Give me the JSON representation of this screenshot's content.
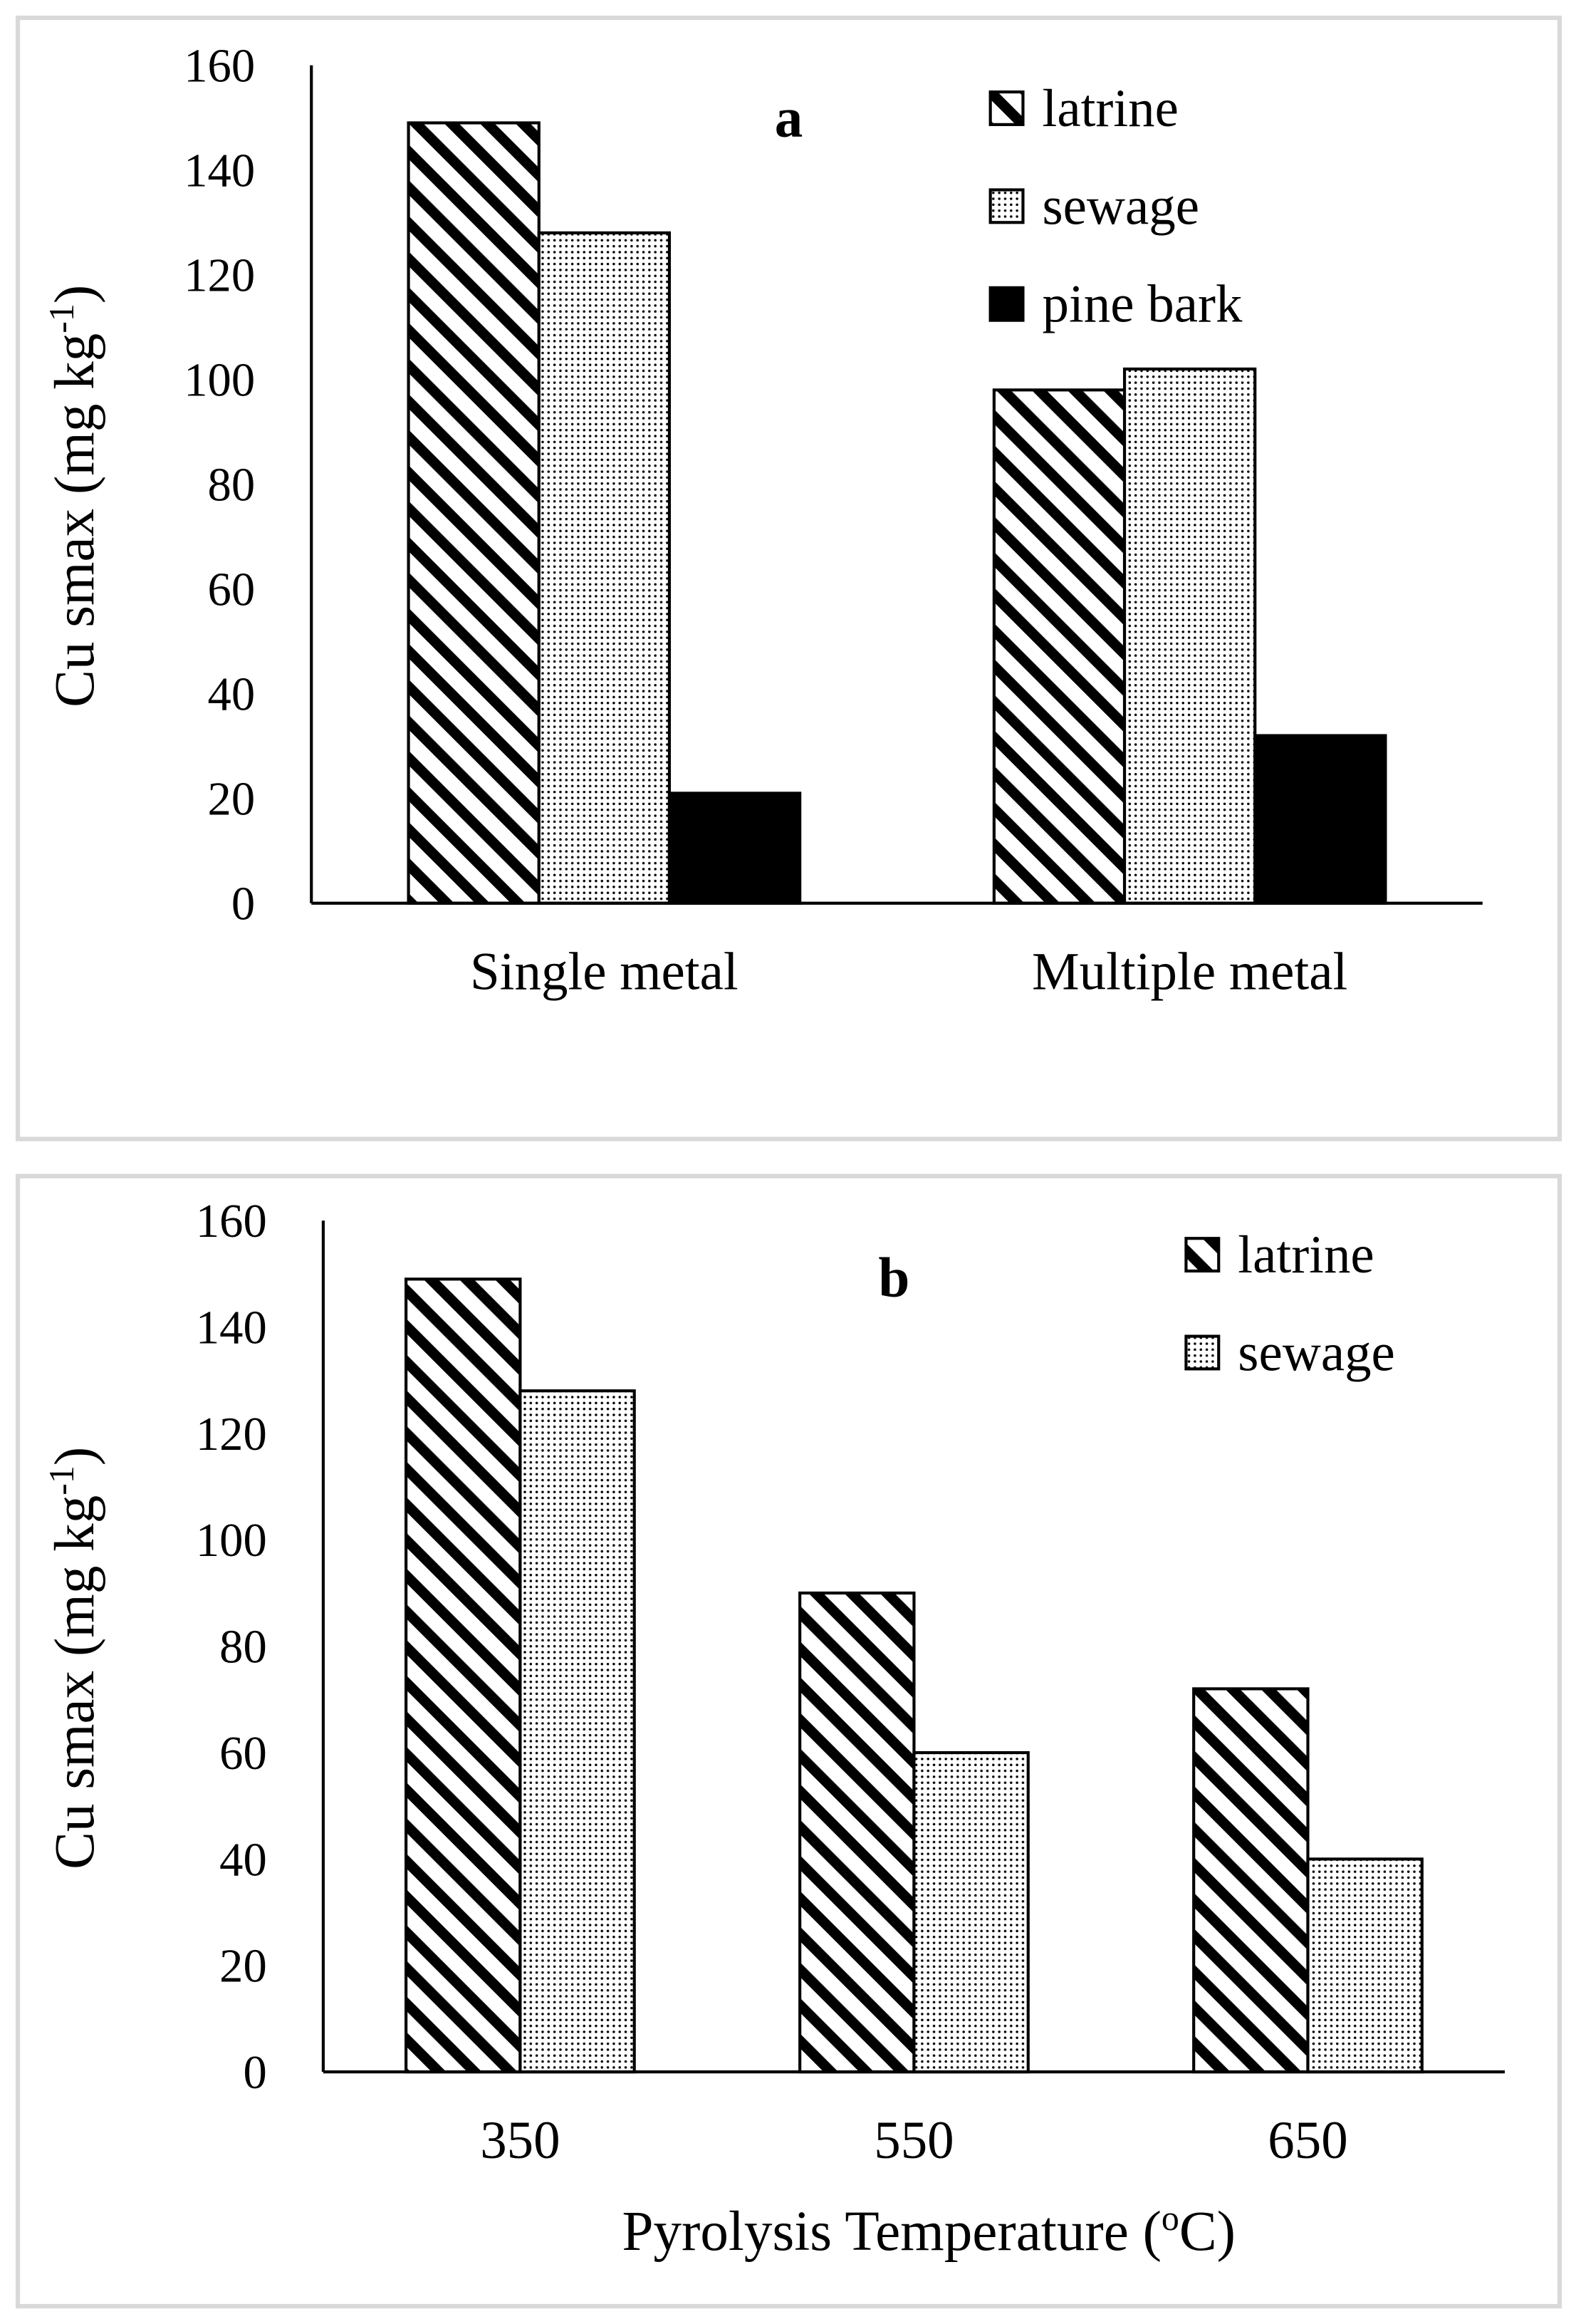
{
  "chart_data": [
    {
      "type": "bar",
      "title": "a",
      "y_label": {
        "text": "Cu smax (mg kg",
        "superscript": "-1",
        "suffix": ")"
      },
      "categories": [
        "Single metal",
        "Multiple metal"
      ],
      "series": [
        {
          "name": "latrine",
          "color": "#000000",
          "pattern": "hatch",
          "values": [
            149,
            98
          ]
        },
        {
          "name": "sewage",
          "color": "#000000",
          "pattern": "dots",
          "values": [
            128,
            102
          ]
        },
        {
          "name": "pine bark",
          "color": "#000000",
          "pattern": "solid",
          "values": [
            21,
            32
          ]
        }
      ],
      "ylim": [
        0,
        160
      ],
      "yticks": [
        0,
        20,
        40,
        60,
        80,
        100,
        120,
        140,
        160
      ],
      "grid": false,
      "legend": "upper right"
    },
    {
      "type": "bar",
      "title": "b",
      "y_label": {
        "text": "Cu smax (mg kg",
        "superscript": "-1",
        "suffix": ")"
      },
      "x_label": {
        "text": "Pyrolysis Temperature (",
        "superscript": "o",
        "suffix": "C)"
      },
      "categories": [
        "350",
        "550",
        "650"
      ],
      "series": [
        {
          "name": "latrine",
          "color": "#000000",
          "pattern": "hatch",
          "values": [
            149,
            90,
            72
          ]
        },
        {
          "name": "sewage",
          "color": "#000000",
          "pattern": "dots",
          "values": [
            128,
            60,
            40
          ]
        }
      ],
      "ylim": [
        0,
        160
      ],
      "yticks": [
        0,
        20,
        40,
        60,
        80,
        100,
        120,
        140,
        160
      ],
      "grid": false,
      "legend": "upper right"
    }
  ]
}
